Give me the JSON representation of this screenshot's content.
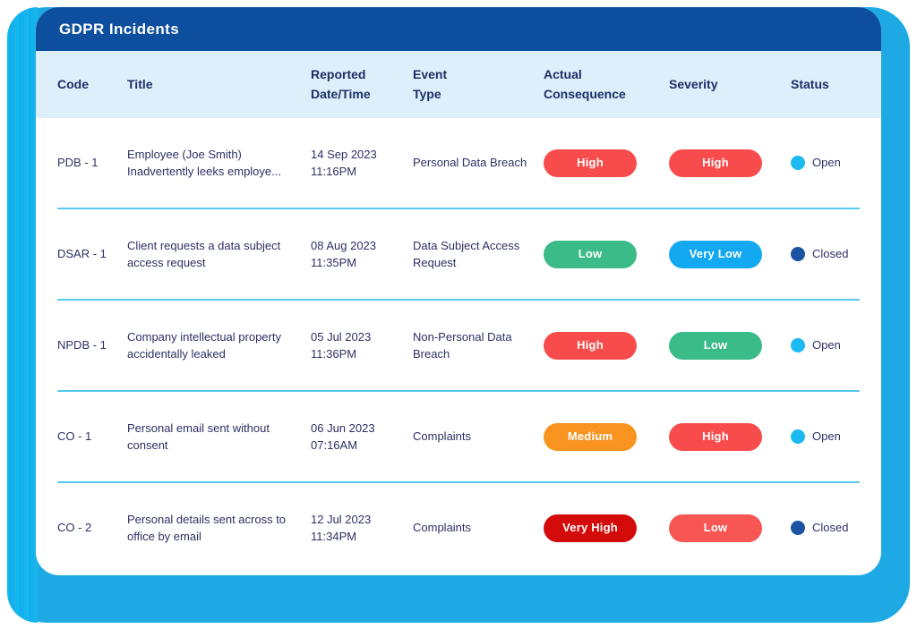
{
  "app": {
    "title": "GDPR Incidents"
  },
  "colors": {
    "frame": "#1fa9e4",
    "header-bg": "#0d4f9e",
    "head-bg": "#ddeffb",
    "head-text": "#1d2e66",
    "text": "#2c3163",
    "separator": "#54c9f2"
  },
  "table": {
    "columns": [
      {
        "label": "Code"
      },
      {
        "label": "Title"
      },
      {
        "label": "Reported\nDate/Time"
      },
      {
        "label": "Event\nType"
      },
      {
        "label": "Actual\nConsequence"
      },
      {
        "label": "Severity"
      },
      {
        "label": "Status"
      }
    ],
    "rows": [
      {
        "code": "PDB - 1",
        "title": "Employee (Joe Smith) Inadvertently leeks employe...",
        "date": "14 Sep 2023",
        "time": "11:16PM",
        "event_type": "Personal Data Breach",
        "consequence": {
          "label": "High",
          "color": "#f84c4c"
        },
        "severity": {
          "label": "High",
          "color": "#f84c4c"
        },
        "status": {
          "label": "Open",
          "color": "#1db9f1"
        }
      },
      {
        "code": "DSAR - 1",
        "title": "Client requests a data subject access request",
        "date": "08 Aug 2023",
        "time": "11:35PM",
        "event_type": "Data Subject Access Request",
        "consequence": {
          "label": "Low",
          "color": "#3bbb87"
        },
        "severity": {
          "label": "Very Low",
          "color": "#12a9f0"
        },
        "status": {
          "label": "Closed",
          "color": "#1a53a3"
        }
      },
      {
        "code": "NPDB - 1",
        "title": "Company intellectual property accidentally leaked",
        "date": "05 Jul 2023",
        "time": "11:36PM",
        "event_type": "Non-Personal Data Breach",
        "consequence": {
          "label": "High",
          "color": "#f84c4c"
        },
        "severity": {
          "label": "Low",
          "color": "#3bbb87"
        },
        "status": {
          "label": "Open",
          "color": "#1db9f1"
        }
      },
      {
        "code": "CO - 1",
        "title": "Personal email sent without consent",
        "date": "06 Jun 2023",
        "time": "07:16AM",
        "event_type": "Complaints",
        "consequence": {
          "label": "Medium",
          "color": "#f8941f"
        },
        "severity": {
          "label": "High",
          "color": "#f84c4c"
        },
        "status": {
          "label": "Open",
          "color": "#1db9f1"
        }
      },
      {
        "code": "CO - 2",
        "title": "Personal details sent across to office by email",
        "date": "12 Jul 2023",
        "time": "11:34PM",
        "event_type": "Complaints",
        "consequence": {
          "label": "Very High",
          "color": "#d30b0b"
        },
        "severity": {
          "label": "Low",
          "color": "#f85555"
        },
        "status": {
          "label": "Closed",
          "color": "#1a53a3"
        }
      }
    ]
  }
}
